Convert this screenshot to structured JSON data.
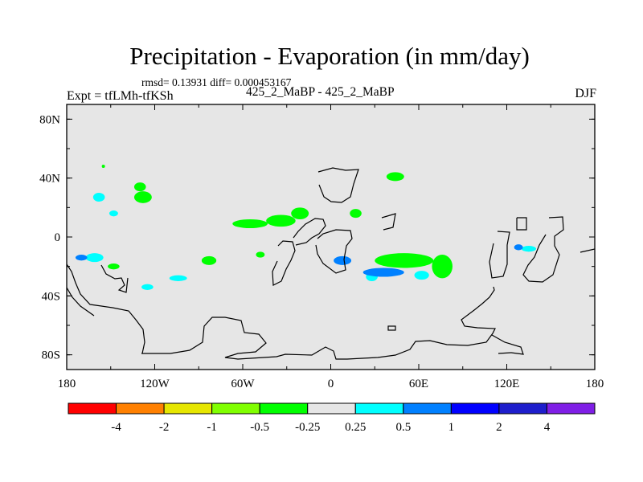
{
  "header": {
    "title": "Precipitation - Evaporation (in mm/day)",
    "stats": "rmsd= 0.13931 diff= 0.000453167",
    "expt": "Expt = tfLMh-tfKSh",
    "cases": "425_2_MaBP - 425_2_MaBP",
    "season": "DJF"
  },
  "chart_data": {
    "type": "heatmap",
    "title": "Precipitation - Evaporation (in mm/day)",
    "xlabel": "",
    "ylabel": "",
    "xlim": [
      -180,
      180
    ],
    "ylim": [
      -90,
      90
    ],
    "x_ticks": [
      {
        "value": -180,
        "label": "180"
      },
      {
        "value": -120,
        "label": "120W"
      },
      {
        "value": -60,
        "label": "60W"
      },
      {
        "value": 0,
        "label": "0"
      },
      {
        "value": 60,
        "label": "60E"
      },
      {
        "value": 120,
        "label": "120E"
      },
      {
        "value": 180,
        "label": "180"
      }
    ],
    "y_ticks": [
      {
        "value": 80,
        "label": "80N"
      },
      {
        "value": 40,
        "label": "40N"
      },
      {
        "value": 0,
        "label": "0"
      },
      {
        "value": -40,
        "label": "40S"
      },
      {
        "value": -80,
        "label": "80S"
      }
    ],
    "background_color": "#e6e6e6",
    "colorbar": {
      "levels": [
        "-4",
        "-2",
        "-1",
        "-0.5",
        "-0.25",
        "0.25",
        "0.5",
        "1",
        "2",
        "4"
      ],
      "colors": [
        "#ff0000",
        "#ff8000",
        "#e6e600",
        "#80ff00",
        "#00ff00",
        "#e6e6e6",
        "#00ffff",
        "#0080ff",
        "#0000ff",
        "#1e1ecc",
        "#7f1ee6"
      ]
    },
    "patches": [
      {
        "lon": -158,
        "lat": 27,
        "rlon": 4,
        "rlat": 3,
        "bin": "0.25 to 0.5"
      },
      {
        "lon": -148,
        "lat": 16,
        "rlon": 3,
        "rlat": 2,
        "bin": "0.25 to 0.5"
      },
      {
        "lon": -128,
        "lat": 27,
        "rlon": 6,
        "rlat": 4,
        "bin": "-0.5 to -0.25"
      },
      {
        "lon": -130,
        "lat": 34,
        "rlon": 4,
        "rlat": 3,
        "bin": "-0.5 to -0.25"
      },
      {
        "lon": -155,
        "lat": 48,
        "rlon": 1,
        "rlat": 1,
        "bin": "-0.5 to -0.25"
      },
      {
        "lon": -55,
        "lat": 9,
        "rlon": 12,
        "rlat": 3,
        "bin": "-0.5 to -0.25"
      },
      {
        "lon": -34,
        "lat": 11,
        "rlon": 10,
        "rlat": 4,
        "bin": "-0.5 to -0.25"
      },
      {
        "lon": -21,
        "lat": 16,
        "rlon": 6,
        "rlat": 4,
        "bin": "-0.5 to -0.25"
      },
      {
        "lon": 17,
        "lat": 16,
        "rlon": 4,
        "rlat": 3,
        "bin": "-0.5 to -0.25"
      },
      {
        "lon": 44,
        "lat": 41,
        "rlon": 6,
        "rlat": 3,
        "bin": "-0.5 to -0.25"
      },
      {
        "lon": 50,
        "lat": -16,
        "rlon": 20,
        "rlat": 5,
        "bin": "-0.5 to -0.25"
      },
      {
        "lon": 76,
        "lat": -20,
        "rlon": 7,
        "rlat": 8,
        "bin": "-0.5 to -0.25"
      },
      {
        "lon": -83,
        "lat": -16,
        "rlon": 5,
        "rlat": 3,
        "bin": "-0.5 to -0.25"
      },
      {
        "lon": -48,
        "lat": -12,
        "rlon": 3,
        "rlat": 2,
        "bin": "-0.5 to -0.25"
      },
      {
        "lon": 28,
        "lat": -27,
        "rlon": 4,
        "rlat": 3,
        "bin": "0.25 to 0.5"
      },
      {
        "lon": -161,
        "lat": -14,
        "rlon": 6,
        "rlat": 3,
        "bin": "0.25 to 0.5"
      },
      {
        "lon": -125,
        "lat": -34,
        "rlon": 4,
        "rlat": 2,
        "bin": "0.25 to 0.5"
      },
      {
        "lon": -104,
        "lat": -28,
        "rlon": 6,
        "rlat": 2,
        "bin": "0.25 to 0.5"
      },
      {
        "lon": 62,
        "lat": -26,
        "rlon": 5,
        "rlat": 3,
        "bin": "0.25 to 0.5"
      },
      {
        "lon": 135,
        "lat": -8,
        "rlon": 5,
        "rlat": 2,
        "bin": "0.25 to 0.5"
      },
      {
        "lon": 8,
        "lat": -16,
        "rlon": 6,
        "rlat": 3,
        "bin": "0.5 to 1"
      },
      {
        "lon": 36,
        "lat": -24,
        "rlon": 14,
        "rlat": 3,
        "bin": "0.5 to 1"
      },
      {
        "lon": 128,
        "lat": -7,
        "rlon": 3,
        "rlat": 2,
        "bin": "0.5 to 1"
      },
      {
        "lon": -170,
        "lat": -14,
        "rlon": 4,
        "rlat": 2,
        "bin": "0.5 to 1"
      },
      {
        "lon": -148,
        "lat": -20,
        "rlon": 4,
        "rlat": 2,
        "bin": "-0.5 to -0.25"
      }
    ],
    "land_outlines": "continent boundary contours (black lines)"
  }
}
